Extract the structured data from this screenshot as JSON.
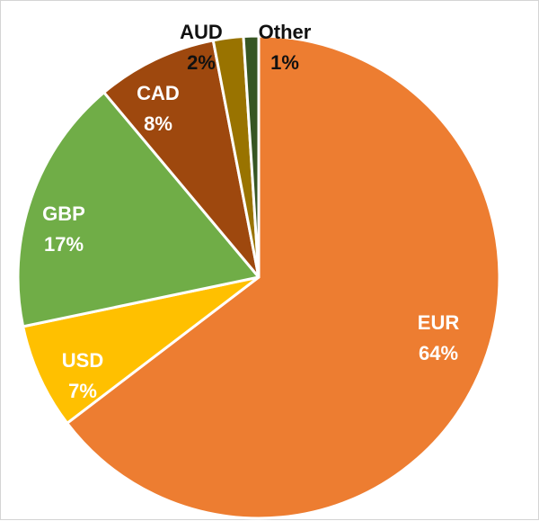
{
  "chart_data": {
    "type": "pie",
    "title": "",
    "categories": [
      "EUR",
      "USD",
      "GBP",
      "CAD",
      "AUD",
      "Other"
    ],
    "values": [
      64,
      7,
      17,
      8,
      2,
      1
    ],
    "value_labels": [
      "64%",
      "7%",
      "17%",
      "8%",
      "2%",
      "1%"
    ],
    "colors": [
      "#ED7D31",
      "#FFC000",
      "#70AD47",
      "#9E480E",
      "#997300",
      "#375623"
    ],
    "label_colors": [
      "#ffffff",
      "#ffffff",
      "#ffffff",
      "#ffffff",
      "#111111",
      "#111111"
    ],
    "start_angle_deg": 0,
    "direction": "clockwise",
    "legend": "none"
  }
}
